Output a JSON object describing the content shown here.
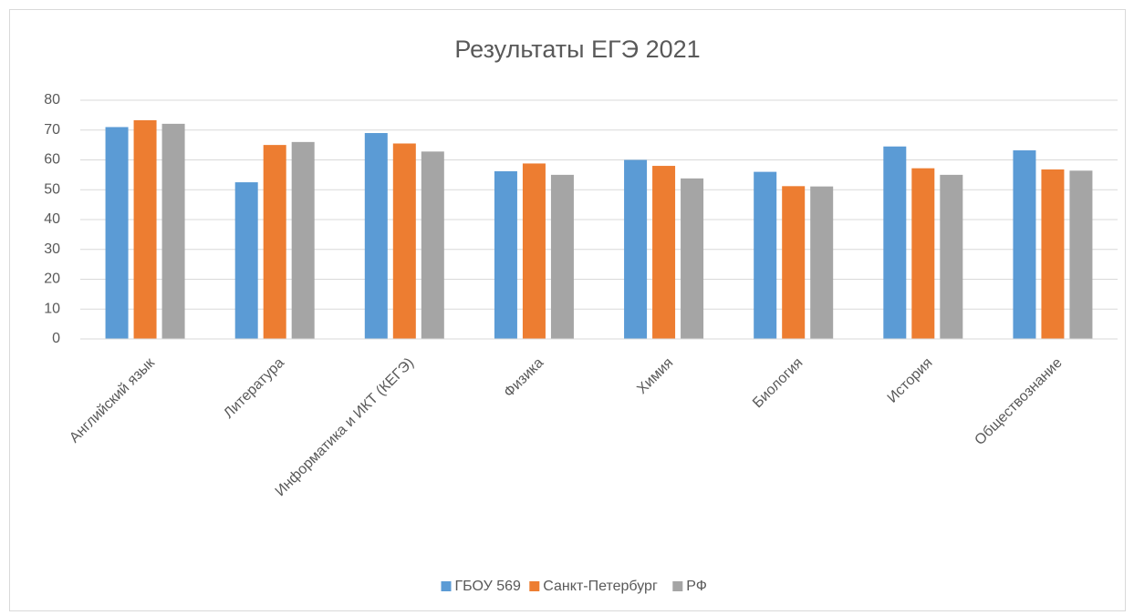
{
  "chart_data": {
    "type": "bar",
    "title": "Результаты ЕГЭ 2021",
    "categories": [
      "Английский язык",
      "Литература",
      "Информатика и ИКТ (КЕГЭ)",
      "Физика",
      "Химия",
      "Биология",
      "История",
      "Обществознание"
    ],
    "series": [
      {
        "name": "ГБОУ 569",
        "color": "#5b9bd5",
        "values": [
          71,
          52.5,
          69,
          56.2,
          60,
          56,
          64.5,
          63.2
        ]
      },
      {
        "name": "Санкт-Петербург",
        "color": "#ed7d31",
        "values": [
          73.3,
          65,
          65.5,
          58.8,
          58,
          51.2,
          57.2,
          56.8
        ]
      },
      {
        "name": "РФ",
        "color": "#a5a5a5",
        "values": [
          72.1,
          66,
          62.8,
          55,
          53.8,
          51.1,
          55,
          56.4
        ]
      }
    ],
    "ylim": [
      0,
      80
    ],
    "yticks": [
      0,
      10,
      20,
      30,
      40,
      50,
      60,
      70,
      80
    ],
    "grid": true,
    "legend": "bottom"
  }
}
